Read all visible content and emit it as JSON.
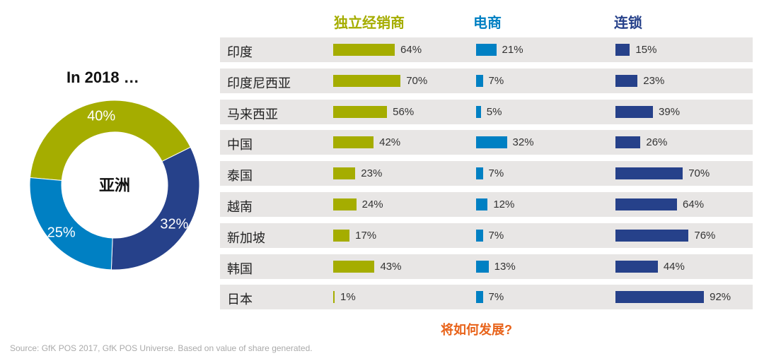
{
  "donut": {
    "title": "In 2018 …",
    "center_label": "亚洲",
    "slices": [
      {
        "label": "40%",
        "value": 40,
        "color": "#a5ad00"
      },
      {
        "label": "32%",
        "value": 32,
        "color": "#26418a"
      },
      {
        "label": "25%",
        "value": 25,
        "color": "#0080c3"
      }
    ]
  },
  "chart_data": {
    "type": "bar",
    "series": [
      {
        "name": "独立经销商",
        "color": "#a5ad00",
        "values": [
          64,
          70,
          56,
          42,
          23,
          24,
          17,
          43,
          1
        ]
      },
      {
        "name": "电商",
        "color": "#0080c3",
        "values": [
          21,
          7,
          5,
          32,
          7,
          12,
          7,
          13,
          7
        ]
      },
      {
        "name": "连锁",
        "color": "#26418a",
        "values": [
          15,
          23,
          39,
          26,
          70,
          64,
          76,
          44,
          92
        ]
      }
    ],
    "categories": [
      "印度",
      "印度尼西亚",
      "马来西亚",
      "中国",
      "泰国",
      "越南",
      "新加坡",
      "韩国",
      "日本"
    ],
    "unit": "%"
  },
  "question": "将如何发展?",
  "source": "Source: GfK POS 2017, GfK POS Universe. Based on value of share generated."
}
